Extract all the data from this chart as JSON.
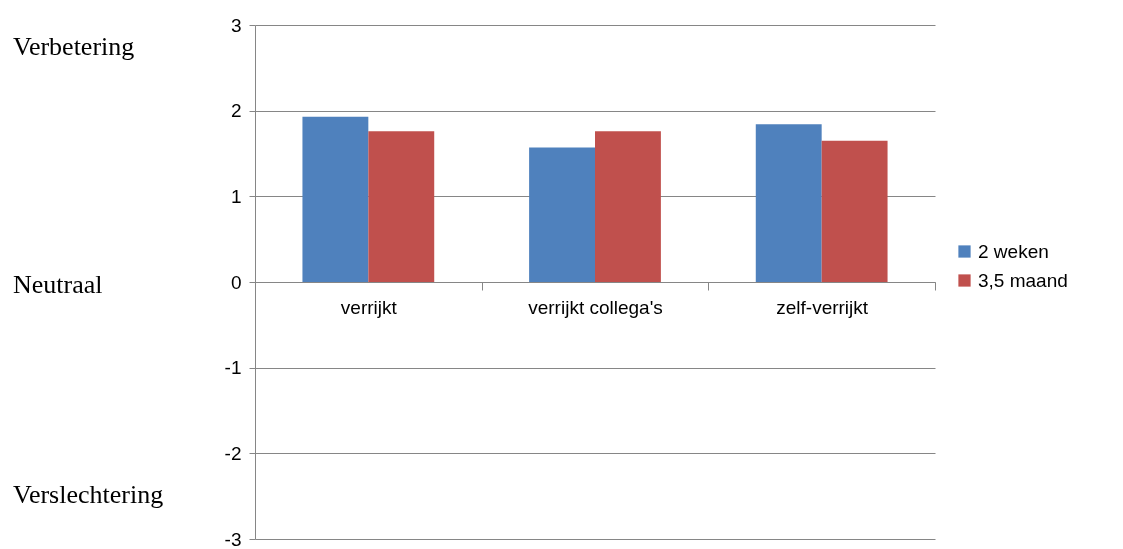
{
  "chart_data": {
    "type": "bar",
    "categories": [
      "verrijkt",
      "verrijkt collega's",
      "zelf-verrijkt"
    ],
    "series": [
      {
        "name": "2 weken",
        "color": "#4f81bd",
        "values": [
          1.93,
          1.57,
          1.84
        ]
      },
      {
        "name": "3,5 maand",
        "color": "#c0504d",
        "values": [
          1.76,
          1.76,
          1.65
        ]
      }
    ],
    "ylim": [
      -3,
      3
    ],
    "yticks": [
      -3,
      -2,
      -1,
      0,
      1,
      2,
      3
    ],
    "grid": "y",
    "legend": "right",
    "annotations": [
      "Verbetering",
      "Neutraal",
      "Verslechtering"
    ]
  }
}
